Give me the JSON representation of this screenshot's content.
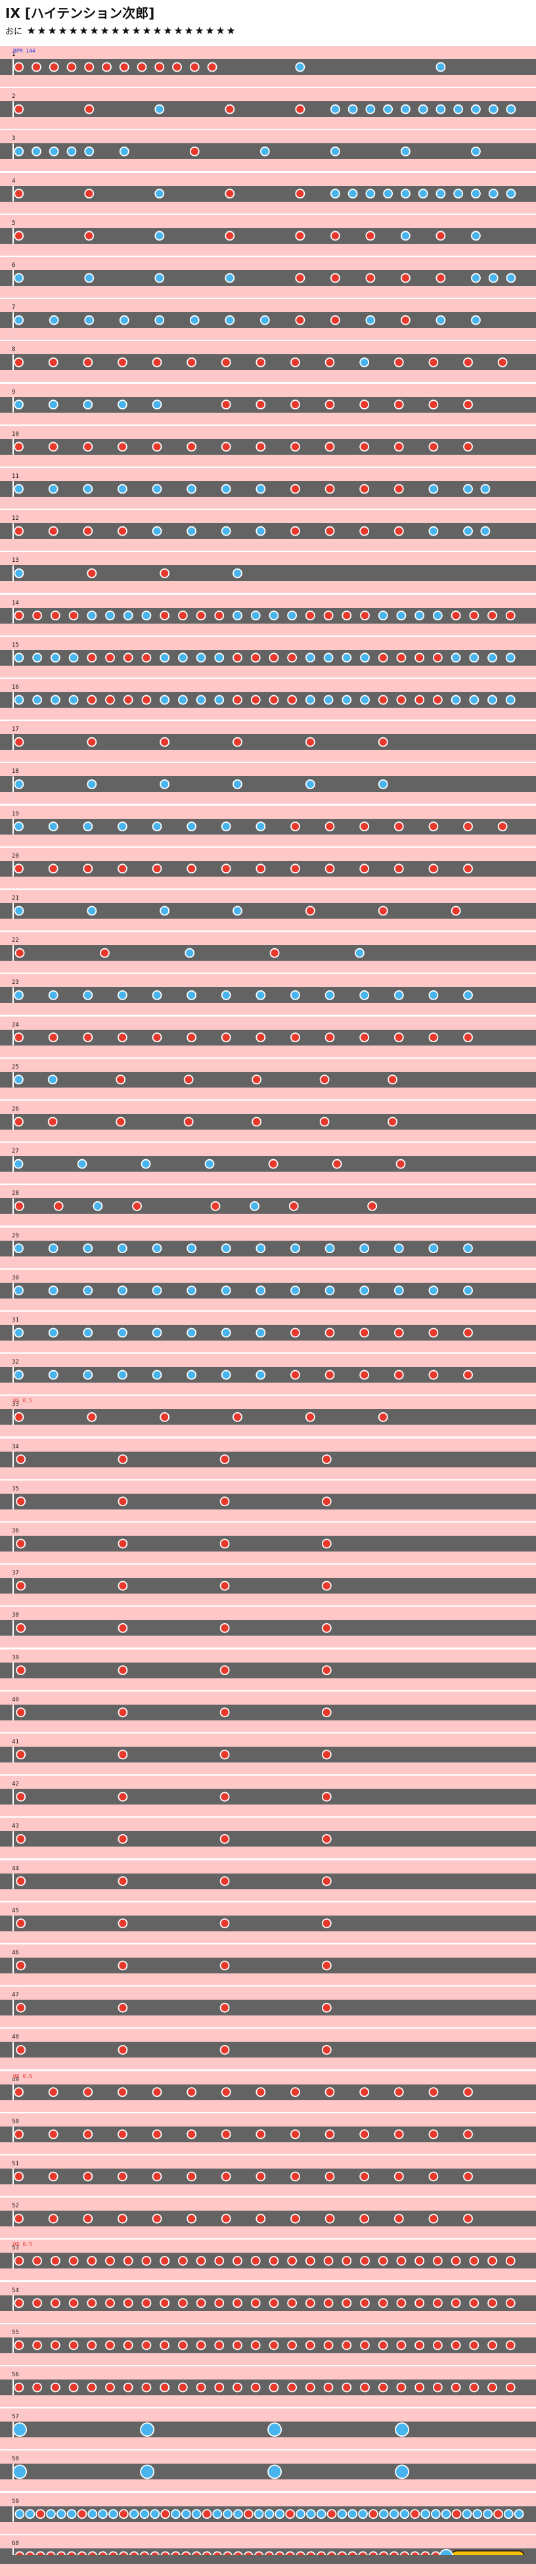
{
  "title": "IX [ハイテンション次郎]",
  "difficulty_label": "おに",
  "star_count": 20,
  "star_glyph": "★",
  "colors": {
    "don": "#e8382c",
    "ka": "#48b4ee",
    "drumroll": "#f8c000",
    "lane": "#636363",
    "band": "#ffc8c8",
    "gogo": "#ffb0b0"
  },
  "chart_data": {
    "type": "table",
    "title": "IX [ハイテンション次郎]",
    "course": "おに",
    "level": 20,
    "start_bpm": "BPM 144",
    "hs_changes": [
      "HS 0.5",
      "HS 0.5",
      "HS 0.5"
    ],
    "note_legend": {
      "d": "don",
      "k": "ka",
      "D": "big don",
      "K": "big ka",
      "r": "drumroll"
    },
    "measures": [
      {
        "number": "1",
        "notes": "d.d.d.d.d.d.d.d.d.d.d.d.........k...............k........."
      },
      {
        "number": "2",
        "notes": "d.......d.......k.......d.......d...k.k.k.k.k.k.k.k.k.k.k."
      },
      {
        "number": "3",
        "notes": "k.k.k.k.k...k.......d.......k.......k.......k.......k....."
      },
      {
        "number": "4",
        "notes": "d.......d.......k.......d.......d...k.k.k.k.k.k.k.k.k.k.k."
      },
      {
        "number": "5",
        "notes": "d.......d.......k.......d.......d...d...d...k...d...k....."
      },
      {
        "number": "6",
        "notes": "k.......k.......k.......k.......d...d...d...d...d...k.k.k."
      },
      {
        "number": "7",
        "notes": "k...k...k...k...k...k...k...k...d...d...k...d...k...k....."
      },
      {
        "number": "8",
        "notes": "d...d...d...d...d...d...d...d...d...d...k...d...d...d...d.."
      },
      {
        "number": "9",
        "notes": "k...k...k...k...k.......d...d...d...d...d...d...d...d......"
      },
      {
        "number": "10",
        "notes": "d...d...d...d...d...d...d...d...d...d...d...d...d...d......"
      },
      {
        "number": "11",
        "notes": "k...k...k...k...k...k...k...k...d...d...d...d...k...k.k...."
      },
      {
        "number": "12",
        "notes": "d...d...d...d...k...k...k...k...d...d...d...d...k...k.k...."
      },
      {
        "number": "13",
        "notes": "k.......d.......d.......k..............................."
      },
      {
        "number": "14",
        "notes": "d.d.d.d.k.k.k.k.d.d.d.d.k.k.k.k.d.d.d.d.k.k.k.k.d.d.d.d."
      },
      {
        "number": "15",
        "notes": "k.k.k.k.d.d.d.d.k.k.k.k.d.d.d.d.k.k.k.k.d.d.d.d.k.k.k.k."
      },
      {
        "number": "16",
        "notes": "k.k.k.k.d.d.d.d.k.k.k.k.d.d.d.d.k.k.k.k.d.d.d.d.k.k.k.k."
      },
      {
        "number": "17",
        "notes": "d.......d.......d.......d.......d.......d..............."
      },
      {
        "number": "18",
        "notes": "k.......k.......k.......k.......k.......k..............."
      },
      {
        "number": "19",
        "notes": "k...k...k...k...k...k...k...k...d...d...d...d...d...d...d.."
      },
      {
        "number": "20",
        "notes": "d...d...d...d...d...d...d...d...d...d...d...d...d...d......"
      },
      {
        "number": "21",
        "notes": "k.......k.......k.......k.......d.......d.......d......."
      },
      {
        "number": "22",
        "notes": "d.......d.......k.......d.......k..............."
      },
      {
        "number": "23",
        "notes": "k...k...k...k...k...k...k...k...k...k...k...k...k...k......"
      },
      {
        "number": "24",
        "notes": "d...d...d...d...d...d...d...d...d...d...d...d...d...d......"
      },
      {
        "number": "25",
        "notes": "k...k.......d.......d.......d.......d.......d..............."
      },
      {
        "number": "26",
        "notes": "d...d.......d.......d.......d.......d.......d..............."
      },
      {
        "number": "27",
        "notes": "k.......k.......k.......k.......d.......d.......d..............."
      },
      {
        "number": "28",
        "notes": "d...d...k...d.......d...k...d.......d..............."
      },
      {
        "number": "29",
        "notes": "k...k...k...k...k...k...k...k...k...k...k...k...k...k......"
      },
      {
        "number": "30",
        "notes": "k...k...k...k...k...k...k...k...k...k...k...k...k...k......"
      },
      {
        "number": "31",
        "notes": "k...k...k...k...k...k...k...k...d...d...d...d...d...d......"
      },
      {
        "number": "32",
        "notes": "k...k...k...k...k...k...k...k...d...d...d...d...d...d......"
      },
      {
        "number": "33",
        "notes": "d.......d.......d.......d.......d.......d..............."
      },
      {
        "number": "34",
        "notes": "d.......d.......d.......d..............."
      },
      {
        "number": "35",
        "notes": "d.......d.......d.......d..............."
      },
      {
        "number": "36",
        "notes": "d.......d.......d.......d..............."
      },
      {
        "number": "37",
        "notes": "d.......d.......d.......d..............."
      },
      {
        "number": "38",
        "notes": "d.......d.......d.......d..............."
      },
      {
        "number": "39",
        "notes": "d.......d.......d.......d..............."
      },
      {
        "number": "40",
        "notes": "d.......d.......d.......d..............."
      },
      {
        "number": "41",
        "notes": "d.......d.......d.......d..............."
      },
      {
        "number": "42",
        "notes": "d.......d.......d.......d..............."
      },
      {
        "number": "43",
        "notes": "d.......d.......d.......d..............."
      },
      {
        "number": "44",
        "notes": "d.......d.......d.......d..............."
      },
      {
        "number": "45",
        "notes": "d.......d.......d.......d..............."
      },
      {
        "number": "46",
        "notes": "d.......d.......d.......d..............."
      },
      {
        "number": "47",
        "notes": "d.......d.......d.......d..............."
      },
      {
        "number": "48",
        "notes": "d.......d.......d.......d..............."
      },
      {
        "number": "49",
        "notes": "d...d...d...d...d...d...d...d...d...d...d...d...d...d......"
      },
      {
        "number": "50",
        "notes": "d...d...d...d...d...d...d...d...d...d...d...d...d...d......"
      },
      {
        "number": "51",
        "notes": "d...d...d...d...d...d...d...d...d...d...d...d...d...d......"
      },
      {
        "number": "52",
        "notes": "d...d...d...d...d...d...d...d...d...d...d...d...d...d......"
      },
      {
        "number": "53",
        "notes": "d.d.d.d.d.d.d.d.d.d.d.d.d.d.d.d.d.d.d.d.d.d.d.d.d.d.d.d."
      },
      {
        "number": "54",
        "notes": "d.d.d.d.d.d.d.d.d.d.d.d.d.d.d.d.d.d.d.d.d.d.d.d.d.d.d.d."
      },
      {
        "number": "55",
        "notes": "d.d.d.d.d.d.d.d.d.d.d.d.d.d.d.d.d.d.d.d.d.d.d.d.d.d.d.d."
      },
      {
        "number": "56",
        "notes": "d.d.d.d.d.d.d.d.d.d.d.d.d.d.d.d.d.d.d.d.d.d.d.d.d.d.d.d."
      },
      {
        "number": "57",
        "notes": "K...........K...........K...........K..........."
      },
      {
        "number": "58",
        "notes": "K...........K...........K...........K..........."
      },
      {
        "number": "59",
        "notes": "kkdkkkdkkkdkkkdkkkdkkkdkkkdkkkdkkkdkkkdkkkdkkkdkk"
      },
      {
        "number": "60",
        "notes": "dddddddddddddddddddddddddddddddddddddddddKrrrrrrr"
      }
    ]
  }
}
